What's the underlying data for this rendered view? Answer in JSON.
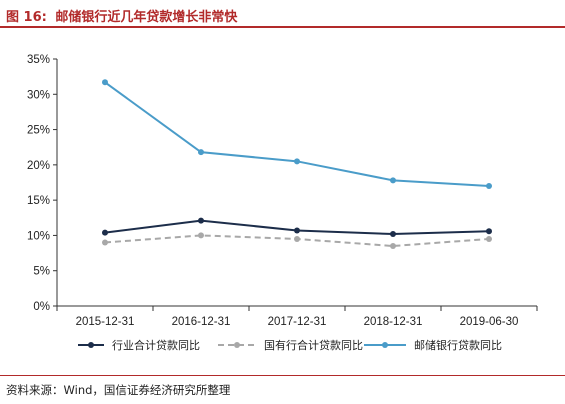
{
  "figure": {
    "label": "图 16:",
    "caption": "邮储银行近几年贷款增长非常快",
    "source": "资料来源：Wind，国信证券经济研究所整理"
  },
  "colors": {
    "title": "#b22a2a",
    "axis": "#333333",
    "series": [
      "#1c2d4a",
      "#a8a8a8",
      "#4a9cc9"
    ]
  },
  "chart_data": {
    "type": "line",
    "title": "",
    "xlabel": "",
    "ylabel": "",
    "categories": [
      "2015-12-31",
      "2016-12-31",
      "2017-12-31",
      "2018-12-31",
      "2019-06-30"
    ],
    "y_ticks": [
      "0%",
      "5%",
      "10%",
      "15%",
      "20%",
      "25%",
      "30%",
      "35%"
    ],
    "ylim": [
      0,
      35
    ],
    "y_unit": "%",
    "grid": false,
    "legend_position": "bottom",
    "series": [
      {
        "name": "行业合计贷款同比",
        "values": [
          10.4,
          12.1,
          10.7,
          10.2,
          10.6
        ],
        "line_style": "solid"
      },
      {
        "name": "国有行合计贷款同比",
        "values": [
          9.0,
          10.0,
          9.5,
          8.5,
          9.5
        ],
        "line_style": "dashed"
      },
      {
        "name": "邮储银行贷款同比",
        "values": [
          31.7,
          21.8,
          20.5,
          17.8,
          17.0
        ],
        "line_style": "solid"
      }
    ]
  }
}
